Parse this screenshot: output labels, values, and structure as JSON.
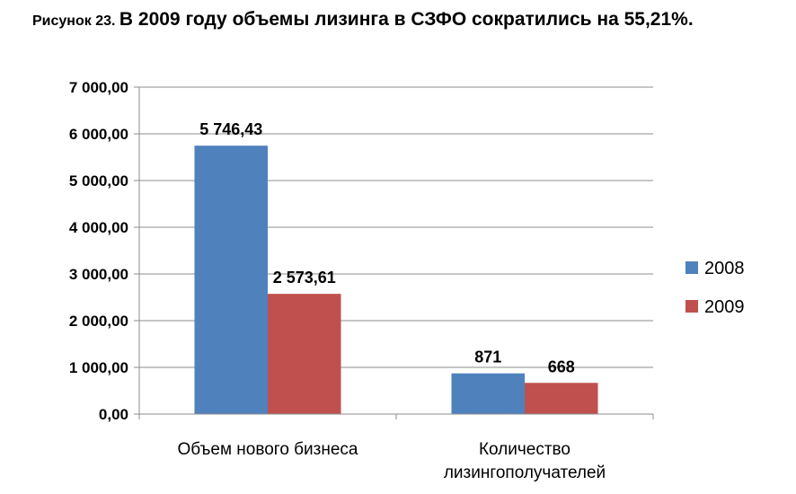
{
  "caption": {
    "prefix": "Рисунок 23.",
    "title": "В 2009 году объемы лизинга в СЗФО сократились на 55,21%."
  },
  "chart_data": {
    "type": "bar",
    "categories": [
      "Объем нового бизнеса",
      "Количество лизингополучателей"
    ],
    "series": [
      {
        "name": "2008",
        "values": [
          5746.43,
          871
        ],
        "labels": [
          "5 746,43",
          "871"
        ],
        "color": "#4F81BD"
      },
      {
        "name": "2009",
        "values": [
          2573.61,
          668
        ],
        "labels": [
          "2 573,61",
          "668"
        ],
        "color": "#C0504D"
      }
    ],
    "y_ticks": [
      0,
      1000,
      2000,
      3000,
      4000,
      5000,
      6000,
      7000
    ],
    "y_tick_labels": [
      "0,00",
      "1 000,00",
      "2 000,00",
      "3 000,00",
      "4 000,00",
      "5 000,00",
      "6 000,00",
      "7 000,00"
    ],
    "ylim": [
      0,
      7000
    ],
    "grid": true,
    "legend_position": "right"
  }
}
